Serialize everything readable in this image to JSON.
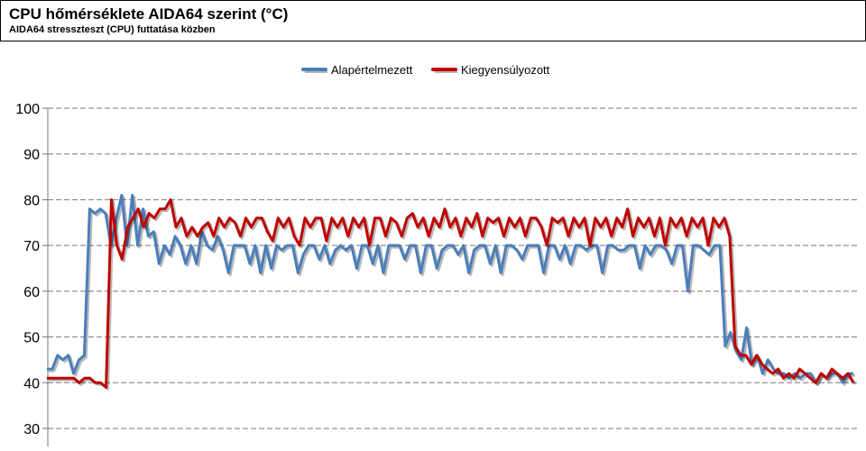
{
  "header": {
    "title": "CPU hőmérséklete AIDA64 szerint (°C)",
    "subtitle": "AIDA64 stresszteszt (CPU) futtatása közben"
  },
  "chart_data": {
    "type": "line",
    "title": "CPU hőmérséklete AIDA64 szerint (°C)",
    "subtitle": "AIDA64 stresszteszt (CPU) futtatása közben",
    "xlabel": "",
    "ylabel": "",
    "ylim": [
      30,
      100
    ],
    "yticks": [
      30,
      40,
      50,
      60,
      70,
      80,
      90,
      100
    ],
    "grid": true,
    "legend_position": "top",
    "series": [
      {
        "name": "Alapértelmezett",
        "color": "#4a7ebb",
        "values": [
          43,
          43,
          46,
          45,
          46,
          42,
          45,
          46,
          78,
          77,
          78,
          77,
          70,
          76,
          81,
          70,
          81,
          70,
          78,
          72,
          73,
          66,
          70,
          68,
          72,
          70,
          66,
          70,
          66,
          73,
          70,
          69,
          72,
          69,
          64,
          70,
          70,
          70,
          66,
          70,
          64,
          70,
          65,
          70,
          69,
          70,
          70,
          64,
          68,
          70,
          70,
          67,
          70,
          66,
          69,
          70,
          69,
          70,
          65,
          70,
          70,
          66,
          70,
          64,
          70,
          70,
          70,
          67,
          70,
          70,
          64,
          70,
          70,
          65,
          69,
          70,
          70,
          68,
          70,
          64,
          69,
          70,
          70,
          66,
          70,
          64,
          70,
          70,
          69,
          67,
          70,
          70,
          70,
          64,
          70,
          70,
          67,
          70,
          66,
          70,
          70,
          69,
          70,
          70,
          64,
          70,
          70,
          69,
          69,
          70,
          70,
          65,
          70,
          68,
          70,
          70,
          69,
          66,
          70,
          70,
          60,
          70,
          70,
          69,
          68,
          70,
          70,
          48,
          51,
          47,
          45,
          52,
          44,
          46,
          42,
          45,
          43,
          42,
          42,
          41,
          42,
          41,
          42,
          42,
          40,
          42,
          41,
          42,
          42,
          40,
          42,
          42
        ]
      },
      {
        "name": "Kiegyensúlyozott",
        "color": "#c00000",
        "values": [
          41,
          41,
          41,
          41,
          41,
          41,
          40,
          41,
          41,
          40,
          40,
          39,
          80,
          70,
          67,
          74,
          76,
          78,
          74,
          77,
          76,
          78,
          78,
          80,
          74,
          76,
          72,
          74,
          72,
          74,
          75,
          72,
          76,
          74,
          76,
          75,
          72,
          76,
          74,
          76,
          76,
          73,
          71,
          76,
          74,
          76,
          72,
          70,
          76,
          74,
          76,
          76,
          71,
          76,
          74,
          76,
          72,
          76,
          74,
          76,
          70,
          76,
          76,
          72,
          76,
          75,
          72,
          76,
          77,
          74,
          76,
          72,
          76,
          74,
          78,
          74,
          76,
          72,
          76,
          74,
          77,
          72,
          76,
          75,
          76,
          72,
          76,
          74,
          76,
          72,
          76,
          76,
          74,
          70,
          76,
          75,
          76,
          72,
          76,
          74,
          76,
          70,
          76,
          74,
          76,
          72,
          76,
          74,
          78,
          72,
          76,
          74,
          76,
          72,
          76,
          70,
          76,
          74,
          76,
          72,
          76,
          74,
          76,
          70,
          76,
          74,
          76,
          72,
          48,
          46,
          46,
          44,
          46,
          44,
          43,
          42,
          43,
          41,
          42,
          41,
          43,
          42,
          41,
          40,
          42,
          41,
          43,
          42,
          41,
          42,
          40
        ]
      }
    ]
  }
}
